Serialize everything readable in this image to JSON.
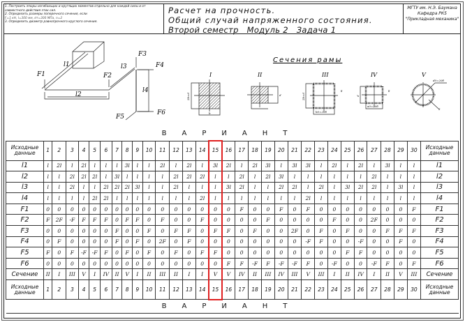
{
  "header": {
    "notes": [
      "1. Построить эпюры изгибающих и крутящих моментов отдельно для каждой силы и от совместного действия этих сил.",
      "2. Определить размеры поперечного сечения, если",
      "F=1 кН, l=300 мм, σт=300 МПа, n=2",
      "3. Определить диаметр равнопрочного круглого сечения."
    ],
    "title": [
      "Расчет на прочность.",
      "Общий случай напряженного состояния.",
      "Второй семестр   Модуль 2   Задача 1"
    ],
    "org": [
      "МГТУ им. Н.Э. Баумана",
      "Кафедра РК5",
      "\"Прикладная механика\""
    ]
  },
  "drawing": {
    "labels": {
      "l1": "l1",
      "l2": "l2",
      "l3": "l3",
      "l4": "l4",
      "F1": "F1",
      "F2": "F2",
      "F3": "F3",
      "F4": "F4",
      "F5": "F5",
      "F6": "F6"
    }
  },
  "sections": {
    "title": "Сечения рамы",
    "names": [
      "I",
      "II",
      "III",
      "IV",
      "V"
    ],
    "dims": {
      "I_h": "2b=d",
      "I_w": "b",
      "II": "d",
      "III_h": "2b=d",
      "III_w": "b0=20δ",
      "III_t": "δ",
      "IV_h": "d",
      "IV_w": "a0=20δ",
      "IV_t": "δ",
      "V_d": "d0=20δ",
      "V_t": "δ"
    }
  },
  "table": {
    "variant_label": "ВАРИАНТ",
    "header_label": "Исходные данные",
    "highlight_variant": 15,
    "highlight_color": "#e02020",
    "variants": [
      1,
      2,
      3,
      4,
      5,
      6,
      7,
      8,
      9,
      10,
      11,
      12,
      13,
      14,
      15,
      16,
      17,
      18,
      19,
      20,
      21,
      22,
      23,
      24,
      25,
      26,
      27,
      28,
      29,
      30
    ],
    "rows": [
      {
        "label": "l1",
        "values": [
          "l",
          "2l",
          "l",
          "2l",
          "l",
          "l",
          "l",
          "3l",
          "l",
          "l",
          "2l",
          "l",
          "2l",
          "l",
          "3l",
          "2l",
          "l",
          "2l",
          "3l",
          "l",
          "3l",
          "3l",
          "l",
          "2l",
          "l",
          "2l",
          "l",
          "3l",
          "l",
          "l"
        ]
      },
      {
        "label": "l2",
        "values": [
          "l",
          "l",
          "2l",
          "2l",
          "2l",
          "l",
          "3l",
          "l",
          "l",
          "l",
          "l",
          "2l",
          "2l",
          "2l",
          "l",
          "l",
          "2l",
          "l",
          "2l",
          "3l",
          "l",
          "l",
          "l",
          "l",
          "l",
          "l",
          "2l",
          "l",
          "l",
          "l"
        ]
      },
      {
        "label": "l3",
        "values": [
          "l",
          "l",
          "2l",
          "l",
          "l",
          "2l",
          "2l",
          "2l",
          "3l",
          "l",
          "l",
          "2l",
          "l",
          "l",
          "l",
          "3l",
          "2l",
          "l",
          "l",
          "2l",
          "2l",
          "l",
          "2l",
          "l",
          "3l",
          "2l",
          "2l",
          "l",
          "3l",
          "l"
        ]
      },
      {
        "label": "l4",
        "values": [
          "l",
          "l",
          "l",
          "l",
          "2l",
          "2l",
          "l",
          "l",
          "l",
          "l",
          "l",
          "l",
          "l",
          "2l",
          "l",
          "l",
          "l",
          "l",
          "l",
          "l",
          "l",
          "2l",
          "l",
          "l",
          "l",
          "l",
          "l",
          "l",
          "l",
          "l"
        ]
      },
      {
        "label": "F1",
        "values": [
          "0",
          "0",
          "0",
          "0",
          "0",
          "0",
          "0",
          "0",
          "0",
          "0",
          "0",
          "0",
          "0",
          "0",
          "0",
          "0",
          "F",
          "0",
          "0",
          "F",
          "0",
          "F",
          "0",
          "0",
          "0",
          "0",
          "0",
          "0",
          "0",
          "F"
        ]
      },
      {
        "label": "F2",
        "values": [
          "F",
          "2F",
          "-F",
          "F",
          "F",
          "F",
          "0",
          "F",
          "F",
          "0",
          "F",
          "0",
          "0",
          "F",
          "0",
          "0",
          "0",
          "0",
          "F",
          "0",
          "0",
          "0",
          "0",
          "F",
          "0",
          "0",
          "2F",
          "0",
          "0",
          "0"
        ]
      },
      {
        "label": "F3",
        "values": [
          "0",
          "0",
          "0",
          "0",
          "0",
          "0",
          "F",
          "0",
          "0",
          "F",
          "0",
          "F",
          "F",
          "0",
          "F",
          "F",
          "0",
          "F",
          "0",
          "0",
          "2F",
          "0",
          "F",
          "0",
          "F",
          "0",
          "0",
          "F",
          "F",
          "F"
        ]
      },
      {
        "label": "F4",
        "values": [
          "0",
          "F",
          "0",
          "0",
          "0",
          "0",
          "F",
          "0",
          "F",
          "0",
          "2F",
          "0",
          "F",
          "0",
          "0",
          "0",
          "0",
          "0",
          "0",
          "0",
          "0",
          "-F",
          "F",
          "0",
          "0",
          "-F",
          "0",
          "0",
          "F",
          "0"
        ]
      },
      {
        "label": "F5",
        "values": [
          "F",
          "0",
          "F",
          "-F",
          "-F",
          "F",
          "0",
          "F",
          "0",
          "F",
          "0",
          "F",
          "0",
          "F",
          "F",
          "0",
          "0",
          "0",
          "0",
          "0",
          "0",
          "0",
          "0",
          "0",
          "F",
          "F",
          "0",
          "0",
          "0",
          "0"
        ]
      },
      {
        "label": "F6",
        "values": [
          "0",
          "0",
          "0",
          "0",
          "0",
          "0",
          "0",
          "0",
          "0",
          "0",
          "0",
          "0",
          "0",
          "0",
          "0",
          "F",
          "F",
          "-F",
          "F",
          "-F",
          "-F",
          "F",
          "0",
          "-F",
          "0",
          "0",
          "-F",
          "F",
          "0",
          "F"
        ]
      },
      {
        "label": "Сечение",
        "values": [
          "II",
          "I",
          "III",
          "V",
          "I",
          "IV",
          "II",
          "V",
          "I",
          "II",
          "III",
          "II",
          "I",
          "I",
          "V",
          "V",
          "IV",
          "II",
          "III",
          "IV",
          "III",
          "V",
          "III",
          "I",
          "II",
          "IV",
          "I",
          "II",
          "V",
          "III"
        ]
      }
    ]
  }
}
